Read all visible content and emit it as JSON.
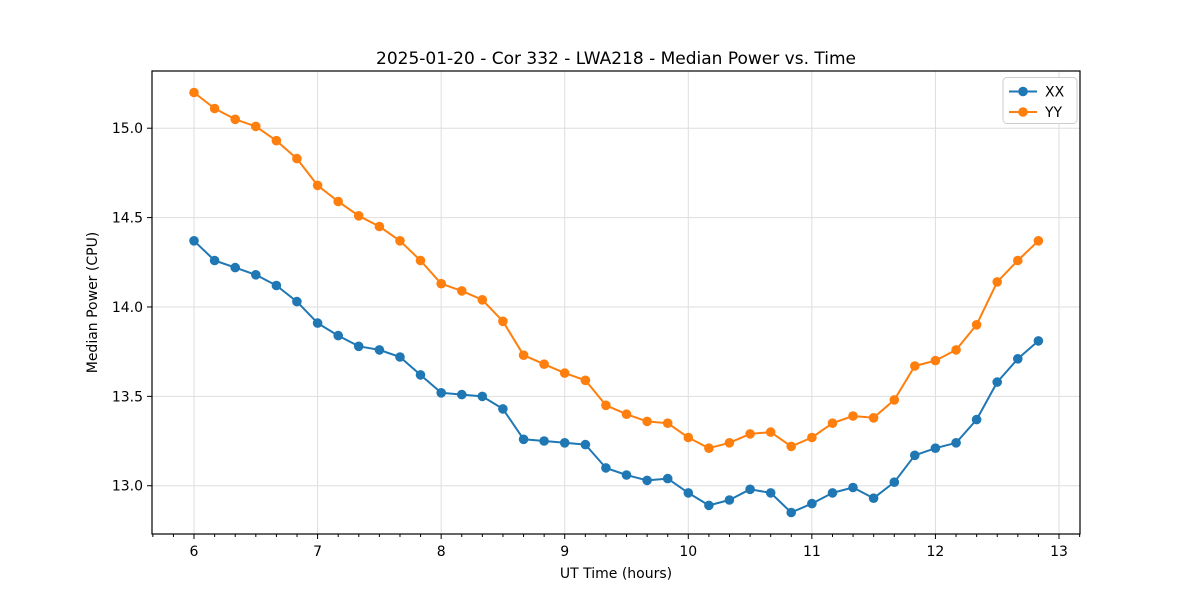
{
  "chart_data": {
    "type": "line",
    "title": "2025-01-20 - Cor 332 - LWA218 - Median Power vs. Time",
    "xlabel": "UT Time (hours)",
    "ylabel": "Median Power (CPU)",
    "x": [
      6.0,
      6.167,
      6.333,
      6.5,
      6.667,
      6.833,
      7.0,
      7.167,
      7.333,
      7.5,
      7.667,
      7.833,
      8.0,
      8.167,
      8.333,
      8.5,
      8.667,
      8.833,
      9.0,
      9.167,
      9.333,
      9.5,
      9.667,
      9.833,
      10.0,
      10.167,
      10.333,
      10.5,
      10.667,
      10.833,
      11.0,
      11.167,
      11.333,
      11.5,
      11.667,
      11.833,
      12.0,
      12.167,
      12.333,
      12.5,
      12.667,
      12.833
    ],
    "series": [
      {
        "name": "XX",
        "color": "#1f77b4",
        "values": [
          14.37,
          14.26,
          14.22,
          14.18,
          14.12,
          14.03,
          13.91,
          13.84,
          13.78,
          13.76,
          13.72,
          13.62,
          13.52,
          13.51,
          13.5,
          13.43,
          13.26,
          13.25,
          13.24,
          13.23,
          13.1,
          13.06,
          13.03,
          13.04,
          12.96,
          12.89,
          12.92,
          12.98,
          12.96,
          12.85,
          12.9,
          12.96,
          12.99,
          12.93,
          13.02,
          13.17,
          13.21,
          13.24,
          13.37,
          13.58,
          13.71,
          13.81
        ]
      },
      {
        "name": "YY",
        "color": "#ff7f0e",
        "values": [
          15.2,
          15.11,
          15.05,
          15.01,
          14.93,
          14.83,
          14.68,
          14.59,
          14.51,
          14.45,
          14.37,
          14.26,
          14.13,
          14.09,
          14.04,
          13.92,
          13.73,
          13.68,
          13.63,
          13.59,
          13.45,
          13.4,
          13.36,
          13.35,
          13.27,
          13.21,
          13.24,
          13.29,
          13.3,
          13.22,
          13.27,
          13.35,
          13.39,
          13.38,
          13.48,
          13.67,
          13.7,
          13.76,
          13.9,
          14.14,
          14.26,
          14.37
        ]
      }
    ],
    "xticks": [
      6,
      7,
      8,
      9,
      10,
      11,
      12,
      13
    ],
    "yticks": [
      13.0,
      13.5,
      14.0,
      14.5,
      15.0
    ],
    "x_minor_step": 0.16667,
    "xlim": [
      5.66,
      13.17
    ],
    "ylim": [
      12.73,
      15.32
    ],
    "grid": true,
    "legend_position": "upper right",
    "marker": "circle",
    "colors": {
      "grid": "#dedede",
      "axis": "#000000",
      "legend_border": "#cccccc",
      "background": "#ffffff"
    }
  }
}
